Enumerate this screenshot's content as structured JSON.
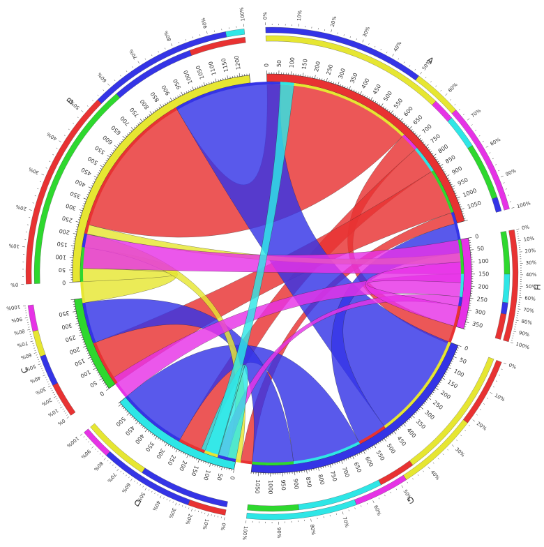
{
  "chart_data": {
    "type": "chord",
    "colors": {
      "A": "#e83232",
      "B": "#e6e632",
      "C": "#2ed82e",
      "D": "#2ee6e6",
      "G": "#3434e6",
      "H": "#e632e6"
    },
    "segments": [
      {
        "name": "A",
        "label": "A",
        "total": 1100,
        "ticks": [
          "0",
          "50",
          "100",
          "150",
          "200",
          "250",
          "300",
          "350",
          "400",
          "450",
          "500",
          "550",
          "600",
          "650",
          "700",
          "750",
          "800",
          "850",
          "900",
          "950",
          "1000",
          "1050"
        ]
      },
      {
        "name": "H",
        "label": "H",
        "total": 380,
        "ticks": [
          "0",
          "50",
          "100",
          "150",
          "200",
          "250",
          "300",
          "350"
        ]
      },
      {
        "name": "G",
        "label": "G",
        "total": 1080,
        "ticks": [
          "0",
          "50",
          "100",
          "150",
          "200",
          "250",
          "300",
          "350",
          "400",
          "450",
          "500",
          "550",
          "600",
          "650",
          "700",
          "750",
          "800",
          "850",
          "900",
          "950",
          "1000",
          "1050"
        ]
      },
      {
        "name": "D",
        "label": "D",
        "total": 560,
        "ticks": [
          "0",
          "50",
          "100",
          "150",
          "200",
          "250",
          "300",
          "350",
          "400",
          "450",
          "500"
        ]
      },
      {
        "name": "C",
        "label": "C",
        "total": 400,
        "ticks": [
          "0",
          "50",
          "100",
          "150",
          "200",
          "250",
          "300",
          "350"
        ]
      },
      {
        "name": "B",
        "label": "B",
        "total": 1240,
        "ticks": [
          "0",
          "50",
          "100",
          "150",
          "200",
          "250",
          "300",
          "350",
          "400",
          "450",
          "500",
          "550",
          "600",
          "650",
          "700",
          "750",
          "800",
          "850",
          "900",
          "950",
          "1000",
          "1050",
          "1100",
          "1150",
          "1200"
        ]
      }
    ],
    "percent_ticks": [
      "0%",
      "10%",
      "20%",
      "30%",
      "40%",
      "50%",
      "60%",
      "70%",
      "80%",
      "90%",
      "100%"
    ],
    "flows": [
      {
        "source": "A",
        "target": "B",
        "value": 650
      },
      {
        "source": "A",
        "target": "H",
        "value": 80
      },
      {
        "source": "A",
        "target": "D",
        "value": 120
      },
      {
        "source": "A",
        "target": "C",
        "value": 200
      },
      {
        "source": "A",
        "target": "G",
        "value": 50
      },
      {
        "source": "G",
        "target": "B",
        "value": 470
      },
      {
        "source": "G",
        "target": "A",
        "value": 130
      },
      {
        "source": "G",
        "target": "D",
        "value": 300
      },
      {
        "source": "G",
        "target": "C",
        "value": 180
      },
      {
        "source": "B",
        "target": "C",
        "value": 150
      },
      {
        "source": "B",
        "target": "G",
        "value": 60
      },
      {
        "source": "B",
        "target": "A",
        "value": 40
      },
      {
        "source": "H",
        "target": "C",
        "value": 150
      },
      {
        "source": "H",
        "target": "D",
        "value": 100
      },
      {
        "source": "H",
        "target": "G",
        "value": 40
      },
      {
        "source": "H",
        "target": "A",
        "value": 90
      },
      {
        "source": "D",
        "target": "G",
        "value": 80
      },
      {
        "source": "D",
        "target": "B",
        "value": 60
      }
    ]
  }
}
